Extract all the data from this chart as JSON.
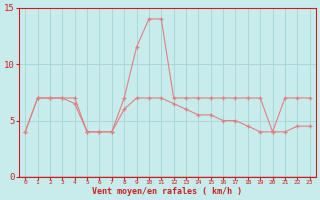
{
  "x": [
    0,
    1,
    2,
    3,
    4,
    5,
    6,
    7,
    8,
    9,
    10,
    11,
    12,
    13,
    14,
    15,
    16,
    17,
    18,
    19,
    20,
    21,
    22,
    23
  ],
  "rafales": [
    4,
    7,
    7,
    7,
    7,
    4,
    4,
    4,
    7,
    11.5,
    14,
    14,
    7,
    7,
    7,
    7,
    7,
    7,
    7,
    7,
    4,
    7,
    7,
    7
  ],
  "moyen": [
    4,
    7,
    7,
    7,
    6.5,
    4,
    4,
    4,
    6,
    7,
    7,
    7,
    6.5,
    6,
    5.5,
    5.5,
    5,
    5,
    4.5,
    4,
    4,
    4,
    4.5,
    4.5
  ],
  "line_color": "#e08080",
  "bg_color": "#c8ecec",
  "grid_color": "#a8d8d8",
  "red_color": "#cc2020",
  "xlabel": "Vent moyen/en rafales ( km/h )",
  "ylim": [
    0,
    15
  ],
  "xlim": [
    -0.5,
    23.5
  ],
  "yticks": [
    0,
    5,
    10,
    15
  ],
  "xticks": [
    0,
    1,
    2,
    3,
    4,
    5,
    6,
    7,
    8,
    9,
    10,
    11,
    12,
    13,
    14,
    15,
    16,
    17,
    18,
    19,
    20,
    21,
    22,
    23
  ]
}
